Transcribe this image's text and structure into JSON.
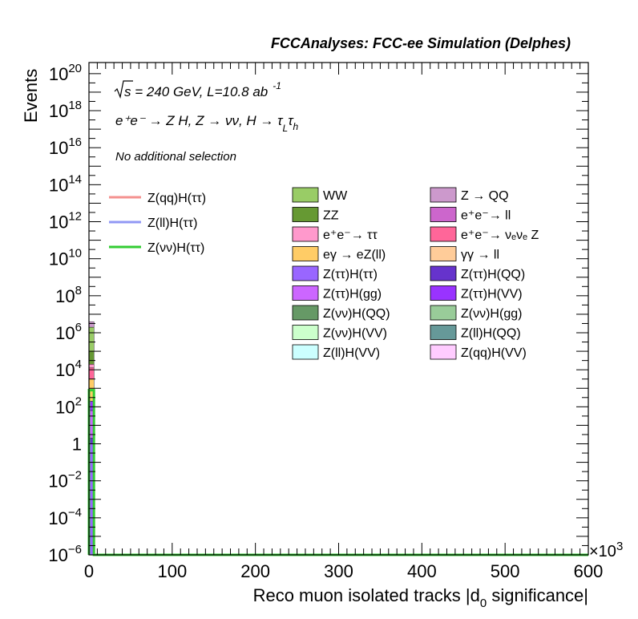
{
  "chart_data": {
    "type": "bar",
    "title": "FCCAnalyses: FCC-ee Simulation (Delphes)",
    "xlabel": "Reco muon isolated tracks |d",
    "xlabel_sub": "0",
    "xlabel_suffix": " significance|",
    "ylabel": "Events",
    "x_multiplier": "×10",
    "x_multiplier_exp": "3",
    "xlim": [
      0,
      600
    ],
    "ylim_log10": [
      -6,
      20.6
    ],
    "y_scale": "log",
    "x_ticks": [
      "0",
      "100",
      "200",
      "300",
      "400",
      "500",
      "600"
    ],
    "y_ticks": [
      {
        "exp": 20,
        "label": "10",
        "sup": "20"
      },
      {
        "exp": 18,
        "label": "10",
        "sup": "18"
      },
      {
        "exp": 16,
        "label": "10",
        "sup": "16"
      },
      {
        "exp": 14,
        "label": "10",
        "sup": "14"
      },
      {
        "exp": 12,
        "label": "10",
        "sup": "12"
      },
      {
        "exp": 10,
        "label": "10",
        "sup": "10"
      },
      {
        "exp": 8,
        "label": "10",
        "sup": "8"
      },
      {
        "exp": 6,
        "label": "10",
        "sup": "6"
      },
      {
        "exp": 4,
        "label": "10",
        "sup": "4"
      },
      {
        "exp": 2,
        "label": "10",
        "sup": "2"
      },
      {
        "exp": 0,
        "label": "1",
        "sup": ""
      },
      {
        "exp": -2,
        "label": "10",
        "sup": "−2"
      },
      {
        "exp": -4,
        "label": "10",
        "sup": "−4"
      },
      {
        "exp": -6,
        "label": "10",
        "sup": "−6"
      }
    ],
    "annotations": {
      "energy_sqrt": "s",
      "energy_rest": " = 240 GeV, L=10.8 ab",
      "energy_sup": "-1",
      "process_line": "e⁺e⁻ → Z H, Z  → νν, H → τ",
      "process_sub1": "L",
      "process_tau2": "τ",
      "process_sub2": "h",
      "selection": "No additional selection"
    },
    "signal_legend": [
      {
        "name": "Z(qq)H(ττ)",
        "color": "#f4918f"
      },
      {
        "name": "Z(ll)H(ττ)",
        "color": "#9198f4"
      },
      {
        "name": "Z(νν)H(ττ)",
        "color": "#33cc33"
      }
    ],
    "background_legend": [
      {
        "name": "WW",
        "color": "#99cc66"
      },
      {
        "name": "Z → QQ",
        "color": "#cc99cc"
      },
      {
        "name": "ZZ",
        "color": "#669933"
      },
      {
        "name": "e⁺e⁻→ ll",
        "color": "#cc66cc"
      },
      {
        "name": "e⁺e⁻→ ττ",
        "color": "#ff99cc"
      },
      {
        "name": "e⁺e⁻→ νₑνₑ Z",
        "color": "#ff6699"
      },
      {
        "name": "eγ → eZ(ll)",
        "color": "#ffcc66"
      },
      {
        "name": "γγ → ll",
        "color": "#ffcc99"
      },
      {
        "name": "Z(ττ)H(ττ)",
        "color": "#9966ff"
      },
      {
        "name": "Z(ττ)H(QQ)",
        "color": "#6633cc"
      },
      {
        "name": "Z(ττ)H(gg)",
        "color": "#cc66ff"
      },
      {
        "name": "Z(ττ)H(VV)",
        "color": "#9933ff"
      },
      {
        "name": "Z(νν)H(QQ)",
        "color": "#669966"
      },
      {
        "name": "Z(νν)H(gg)",
        "color": "#99cc99"
      },
      {
        "name": "Z(νν)H(VV)",
        "color": "#ccffcc"
      },
      {
        "name": "Z(ll)H(QQ)",
        "color": "#669999"
      },
      {
        "name": "Z(ll)H(VV)",
        "color": "#ccffff"
      },
      {
        "name": "Z(qq)H(VV)",
        "color": "#ffccff"
      }
    ],
    "stack_first_bin": {
      "x_range": [
        0,
        6
      ],
      "segments": [
        {
          "process": "Z(ττ)H(ττ)",
          "color": "#9966ff",
          "top_log10": 0.0
        },
        {
          "process": "Z(ττ)H(QQ)",
          "color": "#6633cc",
          "top_log10": 0.3
        },
        {
          "process": "Z(ττ)H(gg)",
          "color": "#cc66ff",
          "top_log10": 1.8
        },
        {
          "process": "Z(ττ)H(VV)",
          "color": "#9933ff",
          "top_log10": 2.3
        },
        {
          "process": "eγ → eZ(ll)",
          "color": "#ffcc66",
          "top_log10": 3.5
        },
        {
          "process": "e⁺e⁻→ νₑνₑ Z",
          "color": "#ff6699",
          "top_log10": 4.1
        },
        {
          "process": "e⁺e⁻→ ττ",
          "color": "#ff99cc",
          "top_log10": 4.3
        },
        {
          "process": "ZZ",
          "color": "#669933",
          "top_log10": 5.0
        },
        {
          "process": "WW",
          "color": "#99cc66",
          "top_log10": 6.3
        },
        {
          "process": "Z → QQ",
          "color": "#cc99cc",
          "top_log10": 6.6
        }
      ]
    },
    "signal_curve": {
      "name": "Z(νν)H(ττ)",
      "color": "#33cc33",
      "points": [
        {
          "x": 0,
          "log10y": -6.0
        },
        {
          "x": 0,
          "log10y": 2.9
        },
        {
          "x": 6,
          "log10y": 2.9
        },
        {
          "x": 6,
          "log10y": -6.0
        },
        {
          "x": 600,
          "log10y": -6.0
        }
      ]
    }
  }
}
